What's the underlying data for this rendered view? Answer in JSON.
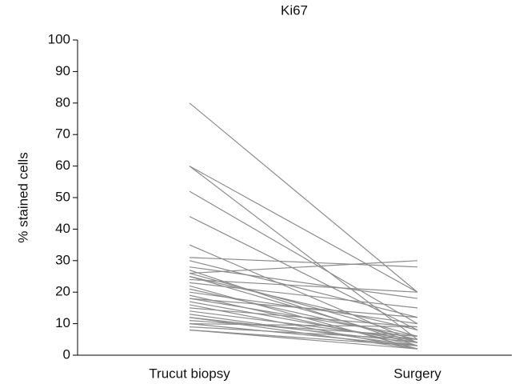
{
  "chart_data": {
    "type": "line",
    "title": "Ki67",
    "ylabel": "% stained cells",
    "categories": [
      "Trucut biopsy",
      "Surgery"
    ],
    "color": "#8c8c8c",
    "ylim": [
      0,
      100
    ],
    "yticks": [
      0,
      10,
      20,
      30,
      40,
      50,
      60,
      70,
      80,
      90,
      100
    ],
    "series": [
      {
        "values": [
          80,
          20
        ]
      },
      {
        "values": [
          60,
          20
        ]
      },
      {
        "values": [
          60,
          5
        ]
      },
      {
        "values": [
          52,
          10
        ]
      },
      {
        "values": [
          44,
          8
        ]
      },
      {
        "values": [
          35,
          4
        ]
      },
      {
        "values": [
          31,
          28
        ]
      },
      {
        "values": [
          30,
          12
        ]
      },
      {
        "values": [
          28,
          18
        ]
      },
      {
        "values": [
          27,
          3
        ]
      },
      {
        "values": [
          26,
          30
        ]
      },
      {
        "values": [
          26,
          6
        ]
      },
      {
        "values": [
          25,
          8
        ]
      },
      {
        "values": [
          25,
          4
        ]
      },
      {
        "values": [
          24,
          20
        ]
      },
      {
        "values": [
          23,
          15
        ]
      },
      {
        "values": [
          22,
          2
        ]
      },
      {
        "values": [
          21,
          5
        ]
      },
      {
        "values": [
          20,
          10
        ]
      },
      {
        "values": [
          19,
          3
        ]
      },
      {
        "values": [
          18,
          12
        ]
      },
      {
        "values": [
          18,
          6
        ]
      },
      {
        "values": [
          17,
          4
        ]
      },
      {
        "values": [
          16,
          2
        ]
      },
      {
        "values": [
          15,
          9
        ]
      },
      {
        "values": [
          14,
          5
        ]
      },
      {
        "values": [
          13,
          3
        ]
      },
      {
        "values": [
          12,
          4
        ]
      },
      {
        "values": [
          12,
          2
        ]
      },
      {
        "values": [
          11,
          6
        ]
      },
      {
        "values": [
          10,
          9
        ]
      },
      {
        "values": [
          10,
          3
        ]
      },
      {
        "values": [
          9,
          5
        ]
      },
      {
        "values": [
          8,
          3
        ]
      },
      {
        "values": [
          8,
          2
        ]
      }
    ]
  }
}
